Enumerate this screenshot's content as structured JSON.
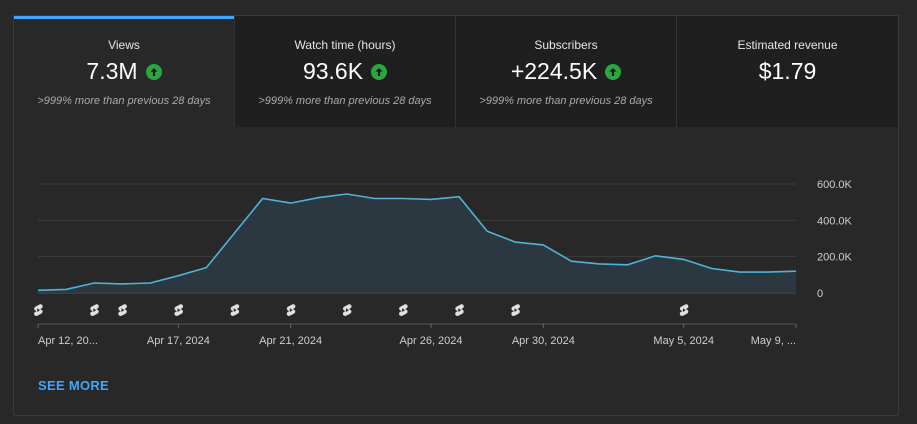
{
  "tabs": [
    {
      "title": "Views",
      "value": "7.3M",
      "trend_icon": "arrow-up-icon",
      "sub": ">999% more than previous 28 days",
      "active": true
    },
    {
      "title": "Watch time (hours)",
      "value": "93.6K",
      "trend_icon": "arrow-up-icon",
      "sub": ">999% more than previous 28 days",
      "active": false
    },
    {
      "title": "Subscribers",
      "value": "+224.5K",
      "trend_icon": "arrow-up-icon",
      "sub": ">999% more than previous 28 days",
      "active": false
    },
    {
      "title": "Estimated revenue",
      "value": "$1.79",
      "trend_icon": null,
      "sub": "",
      "active": false
    }
  ],
  "colors": {
    "accent": "#3ea6ff",
    "positive": "#2ba640",
    "line": "#4fb3d9",
    "area": "#2b3b44"
  },
  "chart_data": {
    "type": "area",
    "title": "Views",
    "ylabel": "",
    "xlabel": "",
    "ylim": [
      0,
      600000
    ],
    "y_ticks": [
      {
        "value": 600000,
        "label": "600.0K"
      },
      {
        "value": 400000,
        "label": "400.0K"
      },
      {
        "value": 200000,
        "label": "200.0K"
      },
      {
        "value": 0,
        "label": "0"
      }
    ],
    "series": [
      {
        "name": "Views",
        "values": [
          15000,
          20000,
          55000,
          50000,
          55000,
          95000,
          140000,
          330000,
          520000,
          495000,
          525000,
          545000,
          520000,
          520000,
          515000,
          530000,
          340000,
          280000,
          265000,
          175000,
          160000,
          155000,
          205000,
          185000,
          135000,
          115000,
          115000,
          120000
        ]
      }
    ],
    "x_labels": [
      {
        "index": 0,
        "label": "Apr 12, 20..."
      },
      {
        "index": 5,
        "label": "Apr 17, 2024"
      },
      {
        "index": 9,
        "label": "Apr 21, 2024"
      },
      {
        "index": 14,
        "label": "Apr 26, 2024"
      },
      {
        "index": 18,
        "label": "Apr 30, 2024"
      },
      {
        "index": 23,
        "label": "May 5, 2024"
      },
      {
        "index": 27,
        "label": "May 9, ..."
      }
    ],
    "shorts_markers": [
      0,
      2,
      3,
      5,
      7,
      9,
      11,
      13,
      15,
      17,
      23
    ]
  },
  "see_more_label": "SEE MORE"
}
